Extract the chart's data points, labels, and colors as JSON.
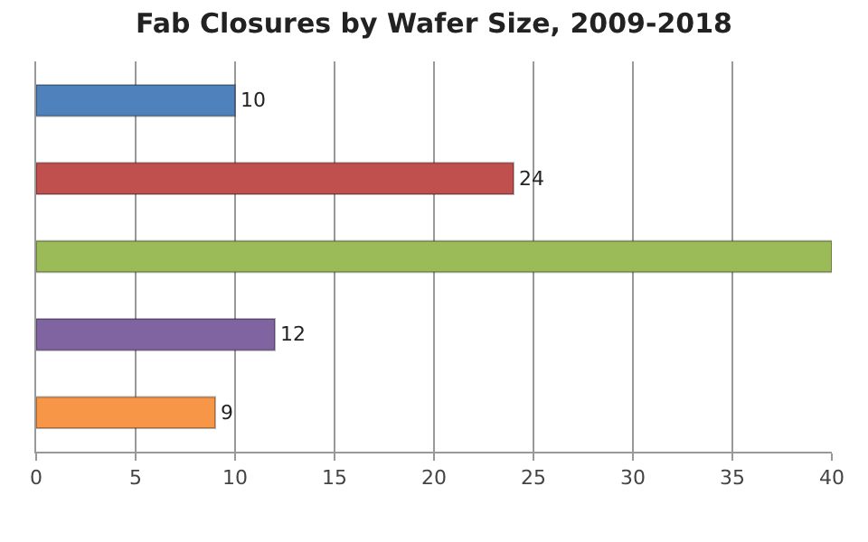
{
  "chart_data": {
    "type": "bar",
    "orientation": "horizontal",
    "title": "Fab Closures by Wafer Size, 2009-2018",
    "categories": [
      null,
      null,
      null,
      null,
      null
    ],
    "values": [
      10,
      24,
      40,
      12,
      9
    ],
    "colors": [
      "#4f81bd",
      "#c0504d",
      "#9bbb59",
      "#8064a2",
      "#f79646"
    ],
    "value_labels": [
      "10",
      "24",
      null,
      "12",
      "9"
    ],
    "xlim": [
      0,
      40
    ],
    "xticks": [
      0,
      5,
      10,
      15,
      20,
      25,
      30,
      35,
      40
    ],
    "grid": "x"
  }
}
